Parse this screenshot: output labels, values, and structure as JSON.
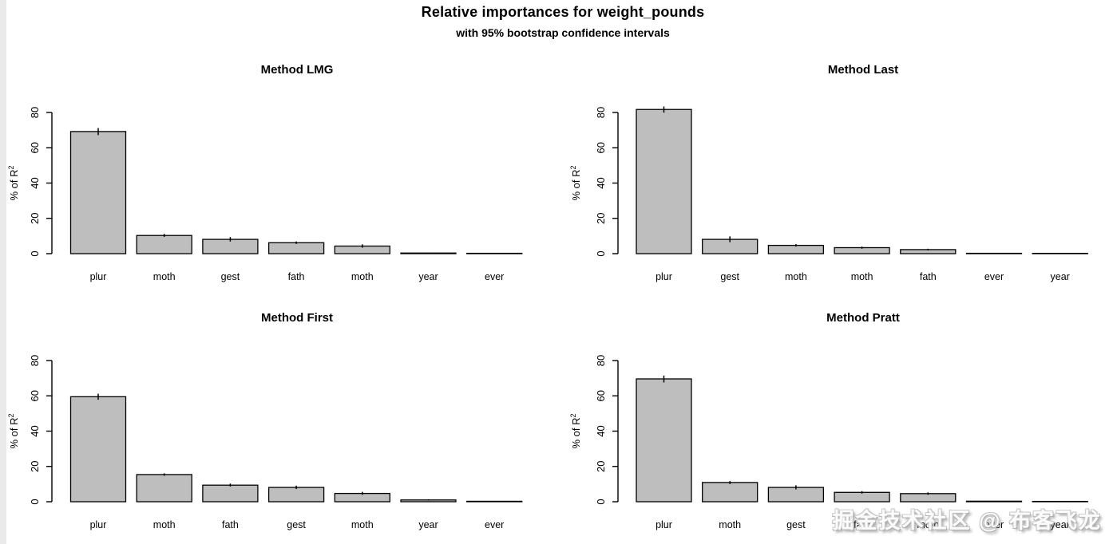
{
  "page": {
    "title": "Relative importances for weight_pounds",
    "subtitle": "with 95% bootstrap confidence intervals",
    "watermark": "掘金技术社区 @ 布客飞龙"
  },
  "style": {
    "background": "#ffffff",
    "left_strip": "#eaeaea",
    "bar_fill": "#bebebe",
    "bar_stroke": "#000000",
    "text_color": "#000000"
  },
  "axis": {
    "ylabel": "% of R²",
    "ylabel_base": "% of R",
    "ylabel_sup": "2",
    "ylim": [
      0,
      80
    ],
    "yticks": [
      0,
      20,
      40,
      60,
      80
    ]
  },
  "chart_data": [
    {
      "type": "bar",
      "title": "Method LMG",
      "xlabel": "",
      "ylabel": "% of R²",
      "ylim": [
        0,
        80
      ],
      "yticks": [
        0,
        20,
        40,
        60,
        80
      ],
      "grid": false,
      "bar_color": "#bebebe",
      "categories": [
        "plur",
        "moth",
        "gest",
        "fath",
        "moth",
        "year",
        "ever"
      ],
      "values": [
        69.2,
        10.3,
        8.1,
        6.2,
        4.3,
        0.35,
        0.2
      ],
      "ci_low": [
        67.2,
        9.5,
        6.9,
        5.5,
        3.4,
        0.2,
        0.1
      ],
      "ci_high": [
        71.2,
        11.2,
        9.4,
        6.9,
        5.3,
        0.55,
        0.3
      ]
    },
    {
      "type": "bar",
      "title": "Method Last",
      "xlabel": "",
      "ylabel": "% of R²",
      "ylim": [
        0,
        80
      ],
      "yticks": [
        0,
        20,
        40,
        60,
        80
      ],
      "grid": false,
      "bar_color": "#bebebe",
      "categories": [
        "plur",
        "gest",
        "moth",
        "moth",
        "fath",
        "ever",
        "year"
      ],
      "values": [
        81.7,
        8.1,
        4.7,
        3.4,
        2.3,
        0.2,
        0.07
      ],
      "ci_low": [
        79.9,
        6.5,
        4.0,
        2.8,
        1.8,
        0.1,
        0.02
      ],
      "ci_high": [
        83.4,
        9.8,
        5.4,
        4.0,
        2.8,
        0.35,
        0.12
      ]
    },
    {
      "type": "bar",
      "title": "Method First",
      "xlabel": "",
      "ylabel": "% of R²",
      "ylim": [
        0,
        80
      ],
      "yticks": [
        0,
        20,
        40,
        60,
        80
      ],
      "grid": false,
      "bar_color": "#bebebe",
      "categories": [
        "plur",
        "moth",
        "fath",
        "gest",
        "moth",
        "year",
        "ever"
      ],
      "values": [
        59.5,
        15.4,
        9.4,
        8.1,
        4.7,
        1.0,
        0.25
      ],
      "ci_low": [
        57.8,
        14.7,
        8.6,
        7.2,
        3.9,
        0.7,
        0.15
      ],
      "ci_high": [
        61.2,
        16.1,
        10.3,
        9.1,
        5.6,
        1.4,
        0.4
      ]
    },
    {
      "type": "bar",
      "title": "Method Pratt",
      "xlabel": "",
      "ylabel": "% of R²",
      "ylim": [
        0,
        80
      ],
      "yticks": [
        0,
        20,
        40,
        60,
        80
      ],
      "grid": false,
      "bar_color": "#bebebe",
      "categories": [
        "plur",
        "moth",
        "gest",
        "fath",
        "moth",
        "ever",
        "year"
      ],
      "values": [
        69.6,
        10.9,
        8.1,
        5.3,
        4.6,
        0.3,
        0.1
      ],
      "ci_low": [
        67.6,
        10.0,
        7.0,
        4.6,
        3.9,
        0.2,
        0.05
      ],
      "ci_high": [
        71.5,
        11.7,
        9.3,
        6.0,
        5.3,
        0.45,
        0.15
      ]
    }
  ]
}
